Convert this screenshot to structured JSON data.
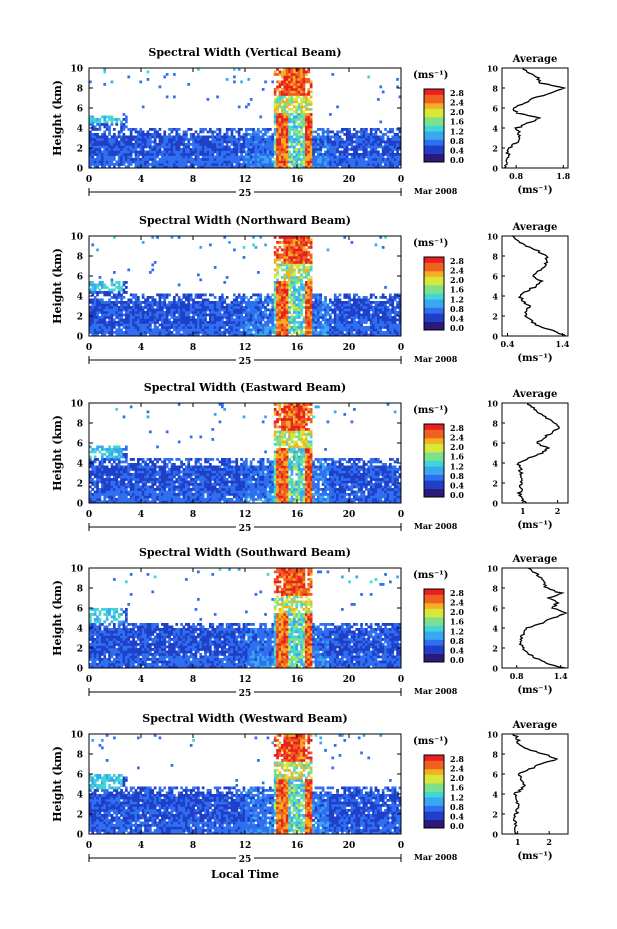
{
  "chart_data": {
    "type": "heatmap",
    "date_label": "Mar 2008",
    "day_label": "25",
    "x_axis_label": "Local Time",
    "y_axis_label": "Height (km)",
    "unit_label": "(ms⁻¹)",
    "average_title": "Average",
    "xlim": [
      0,
      24
    ],
    "x_ticks": [
      "0",
      "4",
      "8",
      "12",
      "16",
      "20",
      "0"
    ],
    "ylim": [
      0,
      10
    ],
    "y_ticks": [
      "0",
      "2",
      "4",
      "6",
      "8",
      "10"
    ],
    "colorbar_range": [
      0,
      3.0
    ],
    "colorbar_ticks": [
      "2.8",
      "2.4",
      "2.0",
      "1.6",
      "1.2",
      "0.8",
      "0.4",
      "0.0"
    ],
    "colormap": [
      "#2b1a7a",
      "#1f3fc8",
      "#2f6ff0",
      "#3aa8f0",
      "#40d6d6",
      "#7ee08a",
      "#d8e83a",
      "#f4b020",
      "#f06020",
      "#e82020"
    ],
    "panels": [
      {
        "title": "Spectral Width (Vertical Beam)",
        "average": {
          "xlim": [
            0.5,
            1.9
          ],
          "x_ticks": [
            "0.8",
            "1.8"
          ],
          "profile": [
            [
              0,
              0.56
            ],
            [
              1,
              0.6
            ],
            [
              2,
              0.66
            ],
            [
              3,
              0.9
            ],
            [
              4,
              0.82
            ],
            [
              4.5,
              1.05
            ],
            [
              5,
              1.3
            ],
            [
              5.5,
              0.85
            ],
            [
              6,
              0.72
            ],
            [
              7,
              1.2
            ],
            [
              7.5,
              1.55
            ],
            [
              8,
              1.85
            ],
            [
              8.5,
              1.3
            ],
            [
              9,
              1.25
            ],
            [
              10,
              0.95
            ]
          ]
        }
      },
      {
        "title": "Spectral Width (Northward Beam)",
        "average": {
          "xlim": [
            0.3,
            1.5
          ],
          "x_ticks": [
            "0.4",
            "1.4"
          ],
          "profile": [
            [
              0,
              1.48
            ],
            [
              0.5,
              1.25
            ],
            [
              1,
              0.95
            ],
            [
              2,
              0.72
            ],
            [
              3,
              0.78
            ],
            [
              4,
              0.62
            ],
            [
              4.5,
              0.75
            ],
            [
              5,
              0.92
            ],
            [
              5.5,
              1.0
            ],
            [
              6,
              0.88
            ],
            [
              6.5,
              0.98
            ],
            [
              7,
              1.1
            ],
            [
              8,
              1.1
            ],
            [
              8.5,
              0.95
            ],
            [
              9,
              0.75
            ],
            [
              10,
              0.48
            ]
          ]
        }
      },
      {
        "title": "Spectral Width (Eastward Beam)",
        "average": {
          "xlim": [
            0.4,
            2.3
          ],
          "x_ticks": [
            "1",
            "2"
          ],
          "profile": [
            [
              0,
              1.05
            ],
            [
              1,
              0.9
            ],
            [
              2,
              0.98
            ],
            [
              3,
              0.95
            ],
            [
              4,
              0.88
            ],
            [
              4.5,
              1.15
            ],
            [
              5,
              1.55
            ],
            [
              5.5,
              1.7
            ],
            [
              6,
              1.4
            ],
            [
              6.5,
              1.6
            ],
            [
              7,
              1.8
            ],
            [
              7.5,
              2.1
            ],
            [
              8,
              1.9
            ],
            [
              9,
              1.5
            ],
            [
              10,
              1.1
            ]
          ]
        }
      },
      {
        "title": "Spectral Width (Southward Beam)",
        "average": {
          "xlim": [
            0.6,
            1.5
          ],
          "x_ticks": [
            "0.8",
            "1.4"
          ],
          "profile": [
            [
              0,
              1.45
            ],
            [
              0.5,
              1.2
            ],
            [
              1,
              1.05
            ],
            [
              2,
              0.88
            ],
            [
              3,
              0.85
            ],
            [
              4,
              0.95
            ],
            [
              4.5,
              1.15
            ],
            [
              5,
              1.3
            ],
            [
              5.5,
              1.45
            ],
            [
              6,
              1.3
            ],
            [
              6.5,
              1.35
            ],
            [
              7,
              1.25
            ],
            [
              7.5,
              1.4
            ],
            [
              8,
              1.2
            ],
            [
              9,
              1.15
            ],
            [
              10,
              0.95
            ]
          ]
        }
      },
      {
        "title": "Spectral Width (Westward Beam)",
        "average": {
          "xlim": [
            0.5,
            2.6
          ],
          "x_ticks": [
            "1",
            "2"
          ],
          "profile": [
            [
              0,
              0.95
            ],
            [
              1,
              0.9
            ],
            [
              2,
              0.95
            ],
            [
              3,
              1.0
            ],
            [
              4,
              0.9
            ],
            [
              4.5,
              1.15
            ],
            [
              5,
              1.2
            ],
            [
              6,
              1.05
            ],
            [
              6.5,
              1.4
            ],
            [
              7,
              1.7
            ],
            [
              7.5,
              2.25
            ],
            [
              8,
              1.85
            ],
            [
              8.5,
              1.3
            ],
            [
              9,
              1.05
            ],
            [
              10,
              0.9
            ]
          ]
        }
      }
    ]
  }
}
